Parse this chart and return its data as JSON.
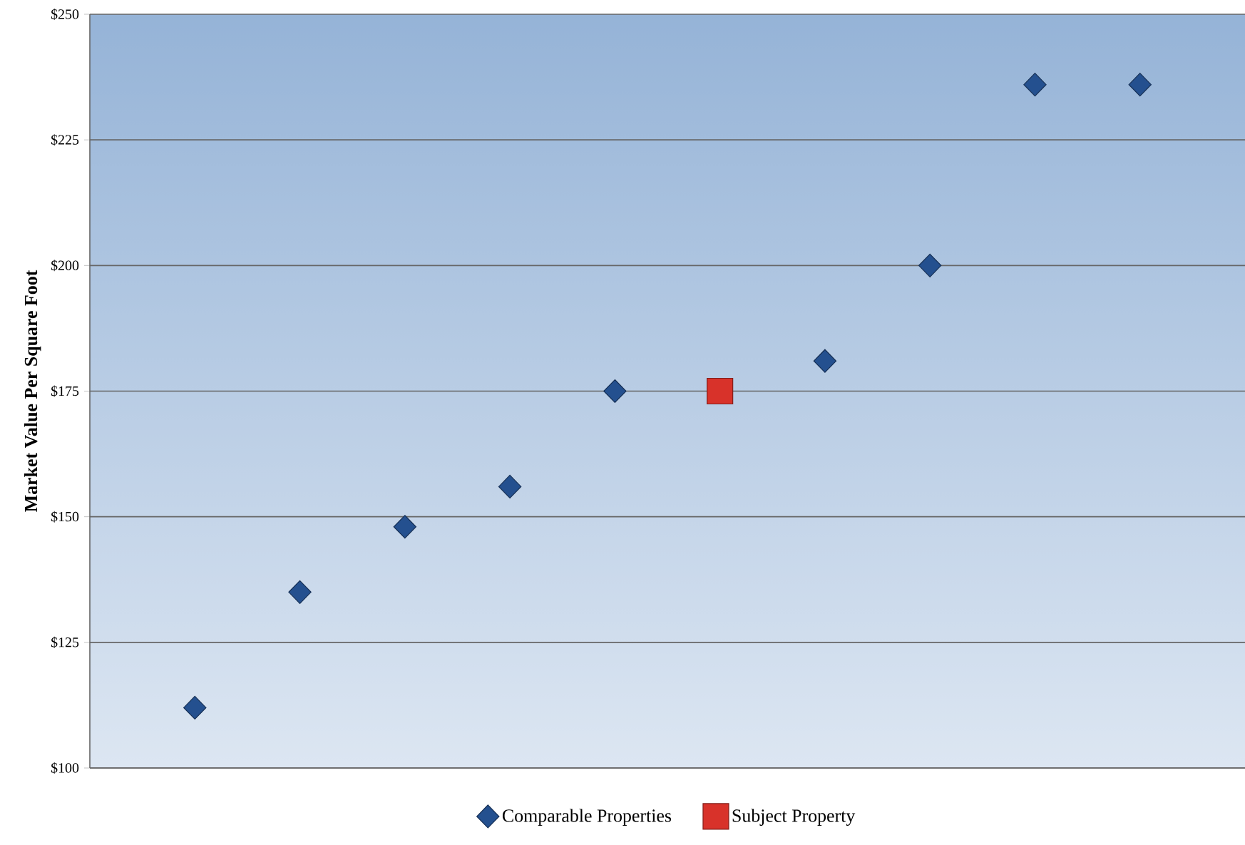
{
  "chart_data": {
    "type": "scatter",
    "ylabel": "Market Value Per Square Foot",
    "categories": [
      null,
      null,
      null,
      null,
      null,
      null,
      null,
      null,
      null,
      null
    ],
    "series": [
      {
        "name": "Comparable Properties",
        "color": "#24508f",
        "marker": "diamond",
        "values": [
          112,
          135,
          148,
          156,
          175,
          null,
          181,
          200,
          236,
          236
        ]
      },
      {
        "name": "Subject Property",
        "color": "#d8322a",
        "marker": "square",
        "values": [
          null,
          null,
          null,
          null,
          null,
          175,
          null,
          null,
          null,
          null
        ]
      }
    ],
    "ylim": [
      100,
      250
    ],
    "yticks": [
      {
        "value": 100,
        "label": "$100"
      },
      {
        "value": 125,
        "label": "$125"
      },
      {
        "value": 150,
        "label": "$150"
      },
      {
        "value": 175,
        "label": "$175"
      },
      {
        "value": 200,
        "label": "$200"
      },
      {
        "value": 225,
        "label": "$225"
      },
      {
        "value": 250,
        "label": "$250"
      }
    ],
    "grid": "y",
    "legend": "bottom",
    "tick_labels": "y"
  }
}
